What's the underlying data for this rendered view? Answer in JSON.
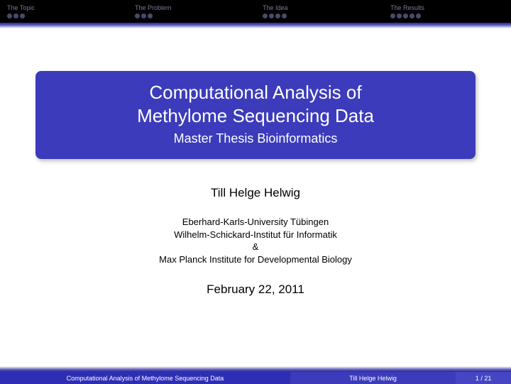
{
  "nav": {
    "items": [
      {
        "label": "The Topic",
        "dots": 3
      },
      {
        "label": "The Problem",
        "dots": 3
      },
      {
        "label": "The Idea",
        "dots": 4
      },
      {
        "label": "The Results",
        "dots": 5
      }
    ]
  },
  "title": {
    "line1": "Computational Analysis of",
    "line2": "Methylome Sequencing Data",
    "subtitle": "Master Thesis Bioinformatics"
  },
  "author": "Till Helge Helwig",
  "affiliation": {
    "line1": "Eberhard-Karls-University Tübingen",
    "line2": "Wilhelm-Schickard-Institut für Informatik",
    "line3": "&",
    "line4": "Max Planck Institute for Developmental Biology"
  },
  "date": "February 22, 2011",
  "footer": {
    "title": "Computational Analysis of Methylome Sequencing Data",
    "author": "Till Helge Helwig",
    "page": "1 / 21"
  },
  "colors": {
    "primary": "#3b3bbb",
    "nav_bg": "#000000",
    "nav_text": "#7a7a9a"
  }
}
